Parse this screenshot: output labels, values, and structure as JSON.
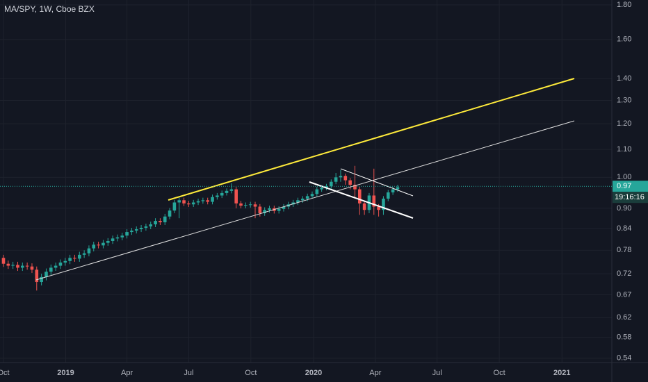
{
  "chart_data": {
    "type": "candlestick",
    "title": "MA/SPY, 1W, Cboe BZX",
    "log_scale": true,
    "grid": true,
    "up_color": "#26a69a",
    "down_color": "#ef5350",
    "x": [
      0,
      1,
      2,
      3,
      4,
      5,
      6,
      7,
      8,
      9,
      10,
      11,
      12,
      13,
      14,
      15,
      16,
      17,
      18,
      19,
      20,
      21,
      22,
      23,
      24,
      25,
      26,
      27,
      28,
      29,
      30,
      31,
      32,
      33,
      34,
      35,
      36,
      37,
      38,
      39,
      40,
      41,
      42,
      43,
      44,
      45,
      46,
      47,
      48,
      49,
      50,
      51,
      52,
      53,
      54,
      55,
      56,
      57,
      58,
      59,
      60,
      61,
      62,
      63,
      64,
      65,
      66,
      67,
      68,
      69,
      70,
      71,
      72,
      73,
      74,
      75,
      76,
      77,
      78,
      79,
      80,
      81,
      82,
      83
    ],
    "open": [
      0.76,
      0.745,
      0.74,
      0.742,
      0.735,
      0.74,
      0.738,
      0.73,
      0.7,
      0.712,
      0.725,
      0.735,
      0.74,
      0.748,
      0.752,
      0.76,
      0.758,
      0.768,
      0.772,
      0.785,
      0.795,
      0.793,
      0.8,
      0.805,
      0.812,
      0.815,
      0.82,
      0.83,
      0.834,
      0.838,
      0.842,
      0.846,
      0.852,
      0.862,
      0.858,
      0.875,
      0.893,
      0.918,
      0.925,
      0.915,
      0.912,
      0.918,
      0.922,
      0.925,
      0.92,
      0.935,
      0.94,
      0.948,
      0.955,
      0.96,
      0.915,
      0.908,
      0.91,
      0.912,
      0.905,
      0.885,
      0.895,
      0.9,
      0.892,
      0.898,
      0.905,
      0.912,
      0.918,
      0.925,
      0.93,
      0.938,
      0.945,
      0.96,
      0.965,
      0.97,
      0.985,
      1.0,
      1.005,
      0.99,
      0.975,
      0.96,
      0.915,
      0.895,
      0.94,
      0.905,
      0.895,
      0.93,
      0.95,
      0.96
    ],
    "high": [
      0.768,
      0.753,
      0.75,
      0.75,
      0.748,
      0.748,
      0.746,
      0.738,
      0.72,
      0.733,
      0.743,
      0.748,
      0.756,
      0.76,
      0.768,
      0.768,
      0.776,
      0.78,
      0.793,
      0.803,
      0.803,
      0.808,
      0.813,
      0.82,
      0.823,
      0.828,
      0.838,
      0.842,
      0.846,
      0.85,
      0.854,
      0.86,
      0.87,
      0.87,
      0.883,
      0.901,
      0.926,
      0.933,
      0.933,
      0.923,
      0.926,
      0.93,
      0.933,
      0.933,
      0.943,
      0.948,
      0.956,
      0.963,
      0.98,
      0.968,
      0.923,
      0.918,
      0.92,
      0.92,
      0.913,
      0.903,
      0.908,
      0.908,
      0.906,
      0.913,
      0.92,
      0.926,
      0.933,
      0.938,
      0.946,
      0.953,
      0.968,
      0.973,
      0.978,
      0.993,
      1.015,
      1.025,
      1.013,
      0.998,
      1.04,
      0.968,
      0.923,
      0.948,
      1.03,
      0.913,
      0.938,
      0.958,
      0.968,
      0.975
    ],
    "low": [
      0.737,
      0.732,
      0.732,
      0.727,
      0.727,
      0.73,
      0.722,
      0.68,
      0.692,
      0.704,
      0.717,
      0.727,
      0.732,
      0.74,
      0.744,
      0.75,
      0.75,
      0.76,
      0.764,
      0.777,
      0.785,
      0.785,
      0.792,
      0.797,
      0.804,
      0.807,
      0.812,
      0.822,
      0.826,
      0.83,
      0.834,
      0.838,
      0.844,
      0.85,
      0.85,
      0.867,
      0.885,
      0.87,
      0.907,
      0.904,
      0.904,
      0.91,
      0.914,
      0.912,
      0.912,
      0.927,
      0.932,
      0.94,
      0.947,
      0.9,
      0.9,
      0.9,
      0.902,
      0.87,
      0.875,
      0.877,
      0.887,
      0.884,
      0.884,
      0.89,
      0.897,
      0.904,
      0.91,
      0.917,
      0.922,
      0.93,
      0.937,
      0.952,
      0.957,
      0.962,
      0.977,
      0.985,
      0.975,
      0.96,
      0.93,
      0.88,
      0.88,
      0.885,
      0.88,
      0.875,
      0.88,
      0.922,
      0.942,
      0.952
    ],
    "close": [
      0.745,
      0.74,
      0.742,
      0.735,
      0.74,
      0.738,
      0.73,
      0.7,
      0.712,
      0.725,
      0.735,
      0.74,
      0.748,
      0.752,
      0.76,
      0.758,
      0.768,
      0.772,
      0.785,
      0.795,
      0.793,
      0.8,
      0.805,
      0.812,
      0.815,
      0.82,
      0.83,
      0.834,
      0.838,
      0.842,
      0.846,
      0.852,
      0.862,
      0.858,
      0.875,
      0.893,
      0.918,
      0.925,
      0.915,
      0.912,
      0.918,
      0.922,
      0.925,
      0.92,
      0.935,
      0.94,
      0.948,
      0.955,
      0.96,
      0.915,
      0.908,
      0.91,
      0.912,
      0.905,
      0.885,
      0.895,
      0.9,
      0.892,
      0.898,
      0.905,
      0.912,
      0.918,
      0.925,
      0.93,
      0.938,
      0.945,
      0.96,
      0.965,
      0.97,
      0.985,
      1.0,
      1.005,
      0.99,
      0.975,
      0.96,
      0.915,
      0.895,
      0.94,
      0.905,
      0.895,
      0.93,
      0.95,
      0.96,
      0.967
    ],
    "xlim": [
      -0.73,
      128.1
    ],
    "xticks": [
      {
        "value": 0,
        "label": "Oct"
      },
      {
        "value": 13.1,
        "label": "2019"
      },
      {
        "value": 26,
        "label": "Apr"
      },
      {
        "value": 39,
        "label": "Jul"
      },
      {
        "value": 52.1,
        "label": "Oct"
      },
      {
        "value": 65.3,
        "label": "2020"
      },
      {
        "value": 78.3,
        "label": "Apr"
      },
      {
        "value": 91.3,
        "label": "Jul"
      },
      {
        "value": 104.4,
        "label": "Oct"
      },
      {
        "value": 117.6,
        "label": "2021"
      }
    ],
    "ylim": [
      0.532,
      1.83
    ],
    "yticks": [
      {
        "value": 1.8,
        "label": "1.80"
      },
      {
        "value": 1.6,
        "label": "1.60"
      },
      {
        "value": 1.4,
        "label": "1.40"
      },
      {
        "value": 1.3,
        "label": "1.30"
      },
      {
        "value": 1.2,
        "label": "1.20"
      },
      {
        "value": 1.1,
        "label": "1.10"
      },
      {
        "value": 1.0,
        "label": "1.00"
      },
      {
        "value": 0.9,
        "label": "0.90"
      },
      0.84,
      0.78,
      0.72,
      0.67,
      0.62,
      0.58,
      0.54
    ],
    "last_price": 0.97,
    "countdown": "19:16:16"
  }
}
